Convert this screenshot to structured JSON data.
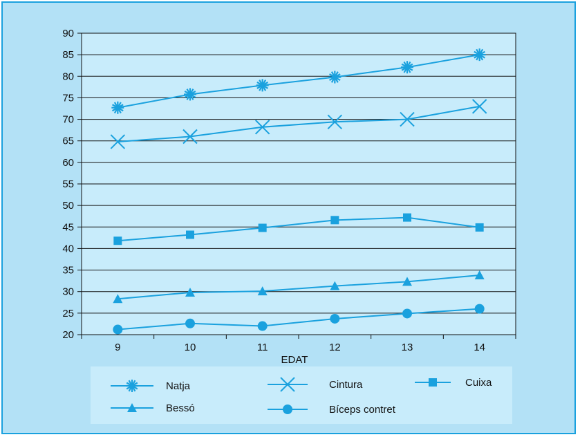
{
  "chart_data": {
    "type": "line",
    "title": "",
    "xlabel": "EDAT",
    "ylabel": "",
    "categories": [
      9,
      10,
      11,
      12,
      13,
      14
    ],
    "ylim": [
      20,
      90
    ],
    "ytick_step": 5,
    "grid": true,
    "legend_position": "bottom",
    "line_color": "#1aa1de",
    "series": [
      {
        "name": "Natja",
        "marker": "asterisk",
        "values": [
          72.7,
          75.8,
          77.9,
          79.8,
          82.1,
          85.0
        ]
      },
      {
        "name": "Cintura",
        "marker": "x",
        "values": [
          64.8,
          66.0,
          68.2,
          69.4,
          70.0,
          73.0
        ]
      },
      {
        "name": "Cuixa",
        "marker": "square",
        "values": [
          41.8,
          43.2,
          44.8,
          46.6,
          47.2,
          44.9
        ]
      },
      {
        "name": "Bessó",
        "marker": "triangle",
        "values": [
          28.3,
          29.8,
          30.1,
          31.3,
          32.3,
          33.8
        ]
      },
      {
        "name": "Bíceps contret",
        "marker": "circle",
        "values": [
          21.2,
          22.6,
          22.0,
          23.7,
          24.9,
          26.0
        ]
      }
    ]
  }
}
